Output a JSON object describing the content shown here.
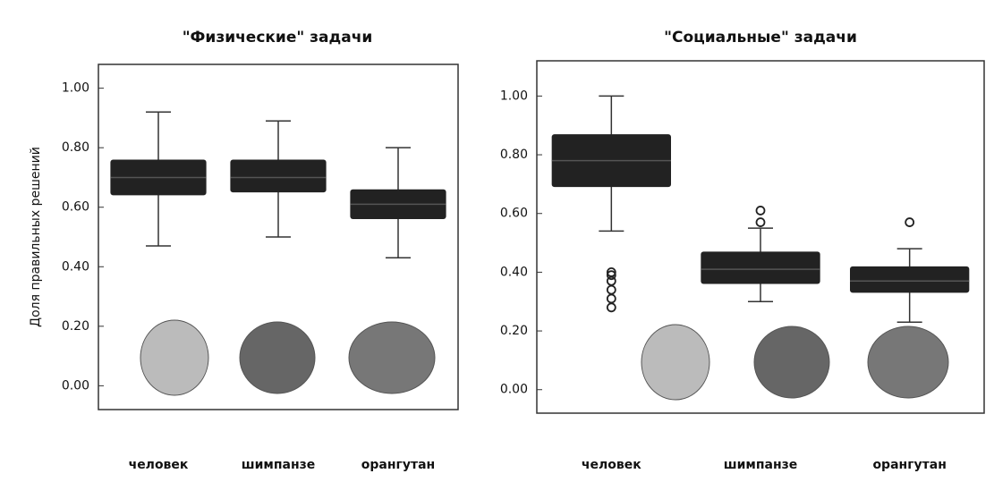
{
  "chart_data": [
    {
      "type": "box",
      "title": "\"Физические\" задачи",
      "ylabel": "Доля правильных решений",
      "categories": [
        "человек",
        "шимпанзе",
        "орангутан"
      ],
      "low": [
        0.47,
        0.5,
        0.43
      ],
      "q1": [
        0.64,
        0.65,
        0.56
      ],
      "median": [
        0.7,
        0.7,
        0.61
      ],
      "q3": [
        0.76,
        0.76,
        0.66
      ],
      "high": [
        0.92,
        0.89,
        0.8
      ],
      "outliers": [
        [],
        [],
        []
      ],
      "color": "#222222",
      "ylim": [
        -0.08,
        1.08
      ],
      "yticks": [
        {
          "value": 0,
          "label": "0.00"
        },
        {
          "value": 0.2,
          "label": "0.20"
        },
        {
          "value": 0.4,
          "label": "0.40"
        },
        {
          "value": 0.6,
          "label": "0.60"
        },
        {
          "value": 0.8,
          "label": "0.80"
        },
        {
          "value": 1,
          "label": "1.00"
        }
      ]
    },
    {
      "type": "box",
      "title": "\"Социальные\" задачи",
      "categories": [
        "человек",
        "шимпанзе",
        "орангутан"
      ],
      "low": [
        0.54,
        0.3,
        0.23
      ],
      "q1": [
        0.69,
        0.36,
        0.33
      ],
      "median": [
        0.78,
        0.41,
        0.37
      ],
      "q3": [
        0.87,
        0.47,
        0.42
      ],
      "high": [
        1.0,
        0.55,
        0.48
      ],
      "outliers": [
        [
          0.28,
          0.31,
          0.34,
          0.37,
          0.39,
          0.4
        ],
        [
          0.57,
          0.61
        ],
        [
          0.57
        ]
      ],
      "color": "#222222",
      "ylim": [
        -0.08,
        1.12
      ],
      "yticks": [
        {
          "value": 0,
          "label": "0.00"
        },
        {
          "value": 0.2,
          "label": "0.20"
        },
        {
          "value": 0.4,
          "label": "0.40"
        },
        {
          "value": 0.6,
          "label": "0.60"
        },
        {
          "value": 0.8,
          "label": "0.80"
        },
        {
          "value": 1,
          "label": "1.00"
        }
      ]
    }
  ]
}
